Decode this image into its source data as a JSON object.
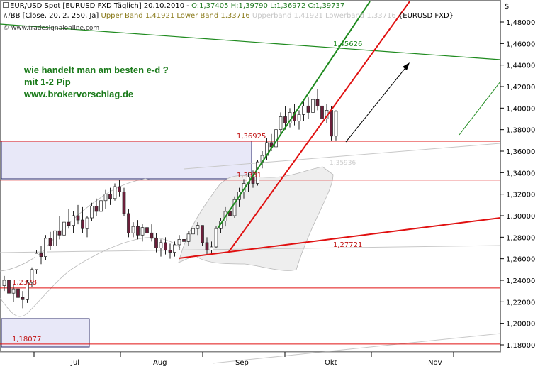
{
  "header": {
    "line1_symbol": "EUR/USD Spot [EURUSD FXD  Täglich] 20.10.2010 -",
    "line1_ohlc": "O:1,37405 H:1,39790 L:1,36972 C:1,39737",
    "line2_bb": "BB [Close, 20, 2, 250, Ja]",
    "line2_bands": "Upper Band 1,41921 Lower Band 1,33716",
    "line2_bands_faded": "Upperband 1,41921 Lowerband 1,33716",
    "line2_source": "{EURUSD FXD}",
    "watermark": "© www.tradesignalonline.com",
    "currency": "$"
  },
  "annotation": {
    "line1": "wie handelt man am besten e-d ?",
    "line2": "mit 1-2 Pip",
    "line3": "www.brokervorschlag.de"
  },
  "colors": {
    "up_candle": "#ffffff",
    "down_candle": "#6b1f3a",
    "trend_green": "#1e8a1e",
    "trend_red": "#e01010",
    "hline_red": "#e01010",
    "box_fill": "#e8e8f8",
    "box_border": "#2a2a6a",
    "band_fill": "#eeeeee"
  },
  "chart_data": {
    "type": "candlestick",
    "y_axis_position": "right",
    "ylim": [
      1.17,
      1.5
    ],
    "y_ticks": [
      "1,48000",
      "1,46000",
      "1,44000",
      "1,42000",
      "1,40000",
      "1,38000",
      "1,36000",
      "1,34000",
      "1,32000",
      "1,30000",
      "1,28000",
      "1,26000",
      "1,24000",
      "1,22000",
      "1,20000",
      "1,18000"
    ],
    "x_months": [
      "Jul",
      "Aug",
      "Sep",
      "Okt",
      "Nov"
    ],
    "candles": [
      {
        "o": 1.235,
        "h": 1.244,
        "l": 1.23,
        "c": 1.24
      },
      {
        "o": 1.24,
        "h": 1.243,
        "l": 1.225,
        "c": 1.228
      },
      {
        "o": 1.228,
        "h": 1.236,
        "l": 1.22,
        "c": 1.232
      },
      {
        "o": 1.232,
        "h": 1.238,
        "l": 1.222,
        "c": 1.224
      },
      {
        "o": 1.224,
        "h": 1.23,
        "l": 1.214,
        "c": 1.222
      },
      {
        "o": 1.222,
        "h": 1.24,
        "l": 1.219,
        "c": 1.238
      },
      {
        "o": 1.238,
        "h": 1.252,
        "l": 1.234,
        "c": 1.25
      },
      {
        "o": 1.25,
        "h": 1.268,
        "l": 1.246,
        "c": 1.265
      },
      {
        "o": 1.265,
        "h": 1.272,
        "l": 1.255,
        "c": 1.262
      },
      {
        "o": 1.262,
        "h": 1.282,
        "l": 1.259,
        "c": 1.279
      },
      {
        "o": 1.279,
        "h": 1.285,
        "l": 1.268,
        "c": 1.272
      },
      {
        "o": 1.272,
        "h": 1.29,
        "l": 1.27,
        "c": 1.286
      },
      {
        "o": 1.286,
        "h": 1.3,
        "l": 1.278,
        "c": 1.282
      },
      {
        "o": 1.282,
        "h": 1.298,
        "l": 1.276,
        "c": 1.294
      },
      {
        "o": 1.294,
        "h": 1.306,
        "l": 1.288,
        "c": 1.291
      },
      {
        "o": 1.291,
        "h": 1.304,
        "l": 1.284,
        "c": 1.3
      },
      {
        "o": 1.3,
        "h": 1.31,
        "l": 1.292,
        "c": 1.296
      },
      {
        "o": 1.296,
        "h": 1.308,
        "l": 1.284,
        "c": 1.288
      },
      {
        "o": 1.288,
        "h": 1.3,
        "l": 1.28,
        "c": 1.298
      },
      {
        "o": 1.298,
        "h": 1.312,
        "l": 1.295,
        "c": 1.309
      },
      {
        "o": 1.309,
        "h": 1.316,
        "l": 1.3,
        "c": 1.304
      },
      {
        "o": 1.304,
        "h": 1.318,
        "l": 1.3,
        "c": 1.314
      },
      {
        "o": 1.314,
        "h": 1.324,
        "l": 1.306,
        "c": 1.32
      },
      {
        "o": 1.32,
        "h": 1.326,
        "l": 1.31,
        "c": 1.316
      },
      {
        "o": 1.316,
        "h": 1.33,
        "l": 1.314,
        "c": 1.327
      },
      {
        "o": 1.327,
        "h": 1.333,
        "l": 1.318,
        "c": 1.322
      },
      {
        "o": 1.322,
        "h": 1.326,
        "l": 1.3,
        "c": 1.302
      },
      {
        "o": 1.302,
        "h": 1.306,
        "l": 1.28,
        "c": 1.284
      },
      {
        "o": 1.284,
        "h": 1.294,
        "l": 1.28,
        "c": 1.29
      },
      {
        "o": 1.29,
        "h": 1.296,
        "l": 1.278,
        "c": 1.282
      },
      {
        "o": 1.282,
        "h": 1.292,
        "l": 1.276,
        "c": 1.289
      },
      {
        "o": 1.289,
        "h": 1.294,
        "l": 1.28,
        "c": 1.284
      },
      {
        "o": 1.284,
        "h": 1.292,
        "l": 1.276,
        "c": 1.279
      },
      {
        "o": 1.279,
        "h": 1.284,
        "l": 1.266,
        "c": 1.27
      },
      {
        "o": 1.27,
        "h": 1.278,
        "l": 1.262,
        "c": 1.275
      },
      {
        "o": 1.275,
        "h": 1.28,
        "l": 1.264,
        "c": 1.268
      },
      {
        "o": 1.268,
        "h": 1.274,
        "l": 1.26,
        "c": 1.266
      },
      {
        "o": 1.266,
        "h": 1.276,
        "l": 1.262,
        "c": 1.273
      },
      {
        "o": 1.273,
        "h": 1.282,
        "l": 1.268,
        "c": 1.278
      },
      {
        "o": 1.278,
        "h": 1.284,
        "l": 1.272,
        "c": 1.276
      },
      {
        "o": 1.276,
        "h": 1.286,
        "l": 1.272,
        "c": 1.283
      },
      {
        "o": 1.283,
        "h": 1.292,
        "l": 1.278,
        "c": 1.288
      },
      {
        "o": 1.288,
        "h": 1.294,
        "l": 1.282,
        "c": 1.291
      },
      {
        "o": 1.291,
        "h": 1.29,
        "l": 1.272,
        "c": 1.275
      },
      {
        "o": 1.275,
        "h": 1.28,
        "l": 1.264,
        "c": 1.268
      },
      {
        "o": 1.268,
        "h": 1.276,
        "l": 1.264,
        "c": 1.271
      },
      {
        "o": 1.271,
        "h": 1.29,
        "l": 1.27,
        "c": 1.288
      },
      {
        "o": 1.288,
        "h": 1.298,
        "l": 1.284,
        "c": 1.295
      },
      {
        "o": 1.295,
        "h": 1.308,
        "l": 1.29,
        "c": 1.304
      },
      {
        "o": 1.304,
        "h": 1.312,
        "l": 1.298,
        "c": 1.3
      },
      {
        "o": 1.3,
        "h": 1.318,
        "l": 1.298,
        "c": 1.315
      },
      {
        "o": 1.315,
        "h": 1.326,
        "l": 1.308,
        "c": 1.322
      },
      {
        "o": 1.322,
        "h": 1.334,
        "l": 1.316,
        "c": 1.33
      },
      {
        "o": 1.33,
        "h": 1.34,
        "l": 1.322,
        "c": 1.336
      },
      {
        "o": 1.336,
        "h": 1.342,
        "l": 1.326,
        "c": 1.33
      },
      {
        "o": 1.33,
        "h": 1.352,
        "l": 1.328,
        "c": 1.35
      },
      {
        "o": 1.35,
        "h": 1.36,
        "l": 1.344,
        "c": 1.356
      },
      {
        "o": 1.356,
        "h": 1.372,
        "l": 1.352,
        "c": 1.368
      },
      {
        "o": 1.368,
        "h": 1.376,
        "l": 1.36,
        "c": 1.364
      },
      {
        "o": 1.364,
        "h": 1.384,
        "l": 1.362,
        "c": 1.38
      },
      {
        "o": 1.38,
        "h": 1.396,
        "l": 1.374,
        "c": 1.392
      },
      {
        "o": 1.392,
        "h": 1.402,
        "l": 1.38,
        "c": 1.386
      },
      {
        "o": 1.386,
        "h": 1.4,
        "l": 1.382,
        "c": 1.396
      },
      {
        "o": 1.396,
        "h": 1.404,
        "l": 1.384,
        "c": 1.388
      },
      {
        "o": 1.388,
        "h": 1.398,
        "l": 1.38,
        "c": 1.394
      },
      {
        "o": 1.394,
        "h": 1.406,
        "l": 1.388,
        "c": 1.402
      },
      {
        "o": 1.402,
        "h": 1.41,
        "l": 1.39,
        "c": 1.396
      },
      {
        "o": 1.396,
        "h": 1.414,
        "l": 1.394,
        "c": 1.408
      },
      {
        "o": 1.408,
        "h": 1.418,
        "l": 1.398,
        "c": 1.402
      },
      {
        "o": 1.402,
        "h": 1.41,
        "l": 1.386,
        "c": 1.39
      },
      {
        "o": 1.39,
        "h": 1.404,
        "l": 1.386,
        "c": 1.398
      },
      {
        "o": 1.398,
        "h": 1.402,
        "l": 1.37,
        "c": 1.374
      },
      {
        "o": 1.374,
        "h": 1.398,
        "l": 1.37,
        "c": 1.397
      }
    ],
    "horizontal_levels": [
      {
        "value": 1.36925,
        "label": "1,36925"
      },
      {
        "value": 1.3331,
        "label": "1,3331"
      },
      {
        "value": 1.2328,
        "label": "1,2328"
      },
      {
        "value": 1.18077,
        "label": "1,18077"
      }
    ],
    "trend_labels": [
      {
        "text": "1,45626",
        "value": 1.45626
      },
      {
        "text": "1,27721",
        "value": 1.27721
      },
      {
        "text": "1,35936",
        "value": 1.35936
      }
    ]
  }
}
